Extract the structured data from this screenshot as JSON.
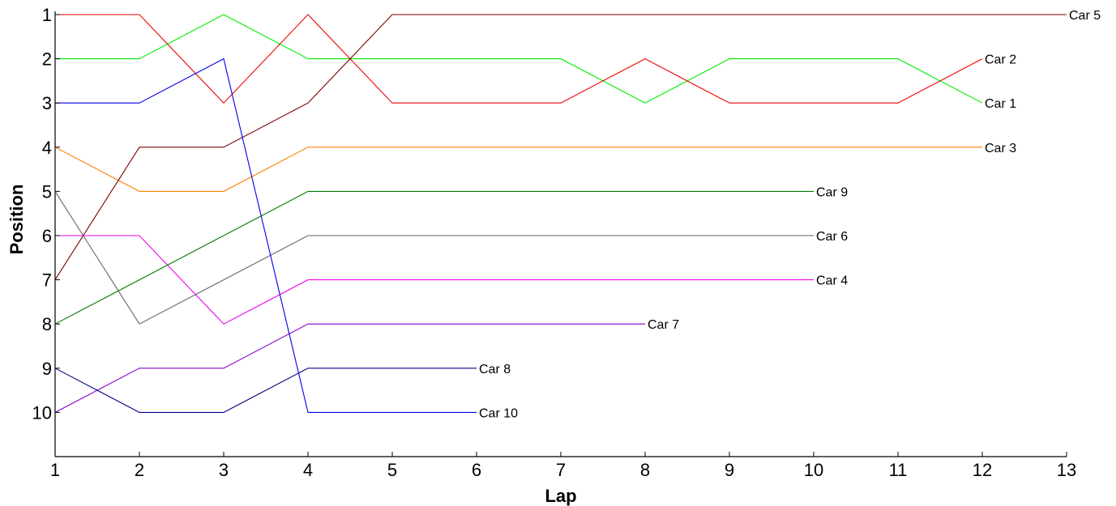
{
  "chart_data": {
    "type": "line",
    "title": "",
    "xlabel": "Lap",
    "ylabel": "Position",
    "x_ticks": [
      "1",
      "2",
      "3",
      "4",
      "5",
      "6",
      "7",
      "8",
      "9",
      "10",
      "11",
      "12",
      "13"
    ],
    "y_ticks": [
      "1",
      "2",
      "3",
      "4",
      "5",
      "6",
      "7",
      "8",
      "9",
      "10"
    ],
    "xlim": [
      1,
      13
    ],
    "ylim": [
      1,
      11
    ],
    "y_inverted": true,
    "grid": false,
    "legend": "none (series labelled at line ends)",
    "series": [
      {
        "name": "Car 1",
        "color": "#00ee00",
        "x": [
          1,
          2,
          3,
          4,
          5,
          6,
          7,
          8,
          9,
          10,
          11,
          12
        ],
        "values": [
          2,
          2,
          1,
          2,
          2,
          2,
          2,
          3,
          2,
          2,
          2,
          3
        ]
      },
      {
        "name": "Car 2",
        "color": "#ee0000",
        "x": [
          1,
          2,
          3,
          4,
          5,
          6,
          7,
          8,
          9,
          10,
          11,
          12
        ],
        "values": [
          1,
          1,
          3,
          1,
          3,
          3,
          3,
          2,
          3,
          3,
          3,
          2
        ]
      },
      {
        "name": "Car 3",
        "color": "#ff8000",
        "x": [
          1,
          2,
          3,
          4,
          5,
          6,
          7,
          8,
          9,
          10,
          11,
          12
        ],
        "values": [
          4,
          5,
          5,
          4,
          4,
          4,
          4,
          4,
          4,
          4,
          4,
          4
        ]
      },
      {
        "name": "Car 4",
        "color": "#ee00ee",
        "x": [
          1,
          2,
          3,
          4,
          5,
          6,
          7,
          8,
          9,
          10
        ],
        "values": [
          6,
          6,
          8,
          7,
          7,
          7,
          7,
          7,
          7,
          7
        ]
      },
      {
        "name": "Car 5",
        "color": "#7a0000",
        "x": [
          1,
          2,
          3,
          4,
          5,
          6,
          7,
          8,
          9,
          10,
          11,
          12,
          13
        ],
        "values": [
          7,
          4,
          4,
          3,
          1,
          1,
          1,
          1,
          1,
          1,
          1,
          1,
          1
        ]
      },
      {
        "name": "Car 6",
        "color": "#666666",
        "x": [
          1,
          2,
          3,
          4,
          5,
          6,
          7,
          8,
          9,
          10
        ],
        "values": [
          5,
          8,
          7,
          6,
          6,
          6,
          6,
          6,
          6,
          6
        ]
      },
      {
        "name": "Car 7",
        "color": "#8800cc",
        "x": [
          1,
          2,
          3,
          4,
          5,
          6,
          7,
          8
        ],
        "values": [
          10,
          9,
          9,
          8,
          8,
          8,
          8,
          8
        ]
      },
      {
        "name": "Car 8",
        "color": "#000080",
        "x": [
          1,
          2,
          3,
          4,
          5,
          6
        ],
        "values": [
          9,
          10,
          10,
          9,
          9,
          9
        ]
      },
      {
        "name": "Car 9",
        "color": "#007700",
        "x": [
          1,
          2,
          3,
          4,
          5,
          6,
          7,
          8,
          9,
          10
        ],
        "values": [
          8,
          7,
          6,
          5,
          5,
          5,
          5,
          5,
          5,
          5
        ]
      },
      {
        "name": "Car 10",
        "color": "#0000ee",
        "x": [
          1,
          2,
          3,
          4,
          5,
          6
        ],
        "values": [
          3,
          3,
          2,
          10,
          10,
          10
        ]
      }
    ]
  }
}
